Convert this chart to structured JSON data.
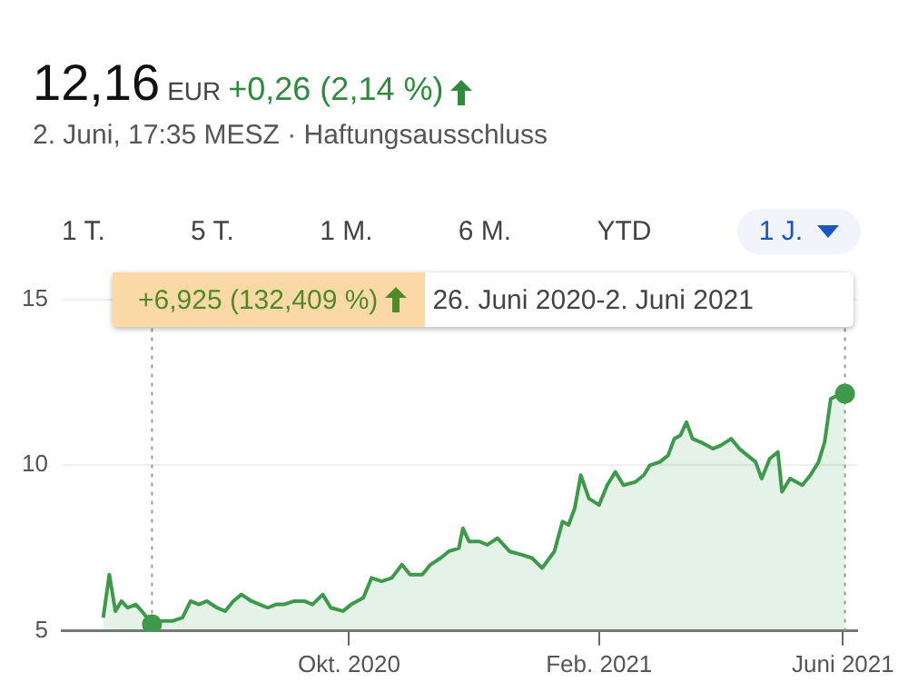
{
  "chart_data": {
    "type": "area",
    "title": "12,16",
    "annotations": [
      "EUR",
      "+0,26 (2,14 %)",
      "2. Juni, 17:35 MESZ · Haftungsausschluss",
      "1 T.",
      "5 T.",
      "1 M.",
      "6 M.",
      "YTD",
      "1 J.",
      "+6,925 (132,409 %)",
      "26. Juni 2020-2. Juni 2021"
    ],
    "series": [
      {
        "color": "#3d9a4a",
        "x": [
          "2020-06-02",
          "2020-06-05",
          "2020-06-08",
          "2020-06-11",
          "2020-06-14",
          "2020-06-18",
          "2020-06-21",
          "2020-06-26",
          "2020-07-01",
          "2020-07-06",
          "2020-07-11",
          "2020-07-15",
          "2020-07-19",
          "2020-07-23",
          "2020-07-28",
          "2020-08-01",
          "2020-08-05",
          "2020-08-09",
          "2020-08-14",
          "2020-08-18",
          "2020-08-22",
          "2020-08-26",
          "2020-08-30",
          "2020-09-04",
          "2020-09-09",
          "2020-09-13",
          "2020-09-18",
          "2020-09-22",
          "2020-09-28",
          "2020-10-02",
          "2020-10-08",
          "2020-10-12",
          "2020-10-17",
          "2020-10-22",
          "2020-10-27",
          "2020-10-31",
          "2020-11-06",
          "2020-11-10",
          "2020-11-15",
          "2020-11-19",
          "2020-11-24",
          "2020-11-26",
          "2020-11-29",
          "2020-12-04",
          "2020-12-08",
          "2020-12-13",
          "2020-12-19",
          "2020-12-25",
          "2020-12-30",
          "2021-01-04",
          "2021-01-10",
          "2021-01-14",
          "2021-01-17",
          "2021-01-20",
          "2021-01-23",
          "2021-01-27",
          "2021-02-01",
          "2021-02-05",
          "2021-02-09",
          "2021-02-13",
          "2021-02-19",
          "2021-02-23",
          "2021-02-26",
          "2021-03-03",
          "2021-03-07",
          "2021-03-10",
          "2021-03-13",
          "2021-03-16",
          "2021-03-19",
          "2021-03-23",
          "2021-03-29",
          "2021-04-02",
          "2021-04-07",
          "2021-04-11",
          "2021-04-15",
          "2021-04-19",
          "2021-04-22",
          "2021-04-26",
          "2021-04-30",
          "2021-05-02",
          "2021-05-06",
          "2021-05-12",
          "2021-05-16",
          "2021-05-20",
          "2021-05-23",
          "2021-05-26",
          "2021-05-29",
          "2021-06-02"
        ],
        "values": [
          5.4,
          6.7,
          5.6,
          5.9,
          5.7,
          5.8,
          5.6,
          5.2,
          5.3,
          5.3,
          5.4,
          5.9,
          5.8,
          5.9,
          5.7,
          5.6,
          5.9,
          6.1,
          5.9,
          5.8,
          5.7,
          5.8,
          5.8,
          5.9,
          5.9,
          5.8,
          6.1,
          5.7,
          5.6,
          5.8,
          6.0,
          6.6,
          6.5,
          6.6,
          7.0,
          6.7,
          6.7,
          7.0,
          7.2,
          7.4,
          7.5,
          8.1,
          7.7,
          7.7,
          7.6,
          7.8,
          7.4,
          7.3,
          7.2,
          6.9,
          7.4,
          8.3,
          8.2,
          8.7,
          9.7,
          9.0,
          8.8,
          9.4,
          9.8,
          9.4,
          9.5,
          9.7,
          10.0,
          10.1,
          10.3,
          10.8,
          10.9,
          11.3,
          10.8,
          10.7,
          10.5,
          10.6,
          10.8,
          10.5,
          10.3,
          10.1,
          9.6,
          10.2,
          10.4,
          9.2,
          9.6,
          9.4,
          9.7,
          10.1,
          10.7,
          12.0,
          12.1,
          12.16
        ]
      },
      {
        "type": "scatter",
        "color": "#3d9a4a",
        "marker": "circle",
        "x": [
          "2020-06-26",
          "2021-06-02"
        ],
        "values": [
          5.2,
          12.16
        ]
      }
    ],
    "xlim": [
      "2020-05-13",
      "2021-06-08"
    ],
    "xticks": [
      {
        "value": "2020-10-01",
        "label": "Okt. 2020"
      },
      {
        "value": "2021-02-01",
        "label": "Feb. 2021"
      },
      {
        "value": "2021-06-01",
        "label": "Juni 2021"
      }
    ],
    "ylim": [
      5,
      15.5
    ],
    "yticks": [
      5,
      10,
      15
    ],
    "grid": "y",
    "marker": "none",
    "ref_lines": [
      {
        "axis": "x",
        "value": "2020-06-26",
        "color": "#999999",
        "line_style": "dotted"
      },
      {
        "axis": "x",
        "value": "2021-06-02",
        "color": "#999999",
        "line_style": "dotted"
      }
    ]
  }
}
